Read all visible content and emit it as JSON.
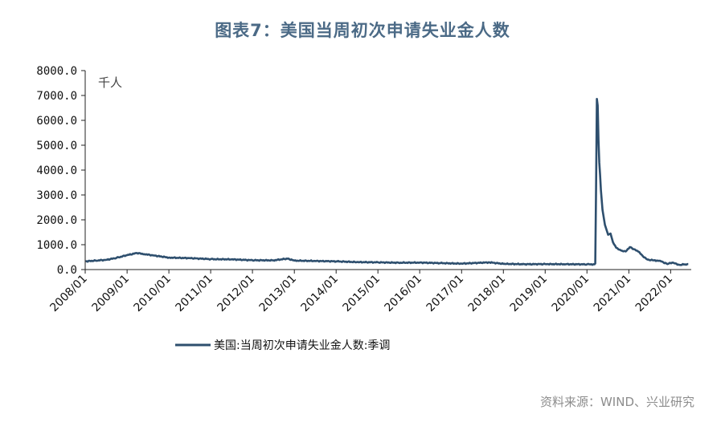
{
  "title": "图表7：美国当周初次申请失业金人数",
  "source": "资料来源：WIND、兴业研究",
  "chart_data": {
    "type": "line",
    "unit_label": "千人",
    "ylim": [
      0,
      8000
    ],
    "yticks": [
      "0.0",
      "1000.0",
      "2000.0",
      "3000.0",
      "4000.0",
      "5000.0",
      "6000.0",
      "7000.0",
      "8000.0"
    ],
    "xticks": [
      "2008/01",
      "2009/01",
      "2010/01",
      "2011/01",
      "2012/01",
      "2013/01",
      "2014/01",
      "2015/01",
      "2016/01",
      "2017/01",
      "2018/01",
      "2019/01",
      "2020/01",
      "2021/01",
      "2022/01"
    ],
    "grid": false,
    "legend_position": "bottom",
    "color": "#2e4f6e",
    "series": [
      {
        "name": "美国:当周初次申请失业金人数:季调",
        "points": [
          [
            "2008-01-05",
            330
          ],
          [
            "2008-04-01",
            360
          ],
          [
            "2008-07-01",
            390
          ],
          [
            "2008-10-01",
            470
          ],
          [
            "2009-01-01",
            580
          ],
          [
            "2009-03-28",
            665
          ],
          [
            "2009-06-01",
            620
          ],
          [
            "2009-09-01",
            560
          ],
          [
            "2010-01-01",
            480
          ],
          [
            "2010-07-01",
            460
          ],
          [
            "2011-01-01",
            420
          ],
          [
            "2011-07-01",
            410
          ],
          [
            "2012-01-01",
            375
          ],
          [
            "2012-07-01",
            370
          ],
          [
            "2012-11-03",
            440
          ],
          [
            "2013-01-01",
            360
          ],
          [
            "2013-07-01",
            345
          ],
          [
            "2014-01-01",
            330
          ],
          [
            "2014-07-01",
            300
          ],
          [
            "2015-01-01",
            290
          ],
          [
            "2015-07-01",
            275
          ],
          [
            "2016-01-01",
            280
          ],
          [
            "2016-07-01",
            260
          ],
          [
            "2017-01-01",
            240
          ],
          [
            "2017-09-02",
            290
          ],
          [
            "2018-01-01",
            230
          ],
          [
            "2018-07-01",
            215
          ],
          [
            "2019-01-01",
            220
          ],
          [
            "2019-07-01",
            215
          ],
          [
            "2020-01-01",
            210
          ],
          [
            "2020-03-07",
            210
          ],
          [
            "2020-03-14",
            250
          ],
          [
            "2020-03-21",
            3300
          ],
          [
            "2020-03-28",
            6860
          ],
          [
            "2020-04-04",
            6600
          ],
          [
            "2020-04-11",
            5200
          ],
          [
            "2020-04-18",
            4300
          ],
          [
            "2020-04-25",
            3800
          ],
          [
            "2020-05-02",
            3200
          ],
          [
            "2020-05-16",
            2400
          ],
          [
            "2020-06-06",
            1800
          ],
          [
            "2020-07-04",
            1400
          ],
          [
            "2020-07-25",
            1450
          ],
          [
            "2020-08-15",
            1100
          ],
          [
            "2020-09-12",
            880
          ],
          [
            "2020-10-24",
            770
          ],
          [
            "2020-12-05",
            730
          ],
          [
            "2021-01-09",
            900
          ],
          [
            "2021-02-13",
            820
          ],
          [
            "2021-04-03",
            700
          ],
          [
            "2021-05-01",
            550
          ],
          [
            "2021-06-12",
            400
          ],
          [
            "2021-08-07",
            370
          ],
          [
            "2021-10-02",
            350
          ],
          [
            "2021-12-04",
            220
          ],
          [
            "2022-01-15",
            280
          ],
          [
            "2022-03-19",
            190
          ],
          [
            "2022-05-07",
            210
          ],
          [
            "2022-06-04",
            220
          ]
        ]
      }
    ]
  }
}
